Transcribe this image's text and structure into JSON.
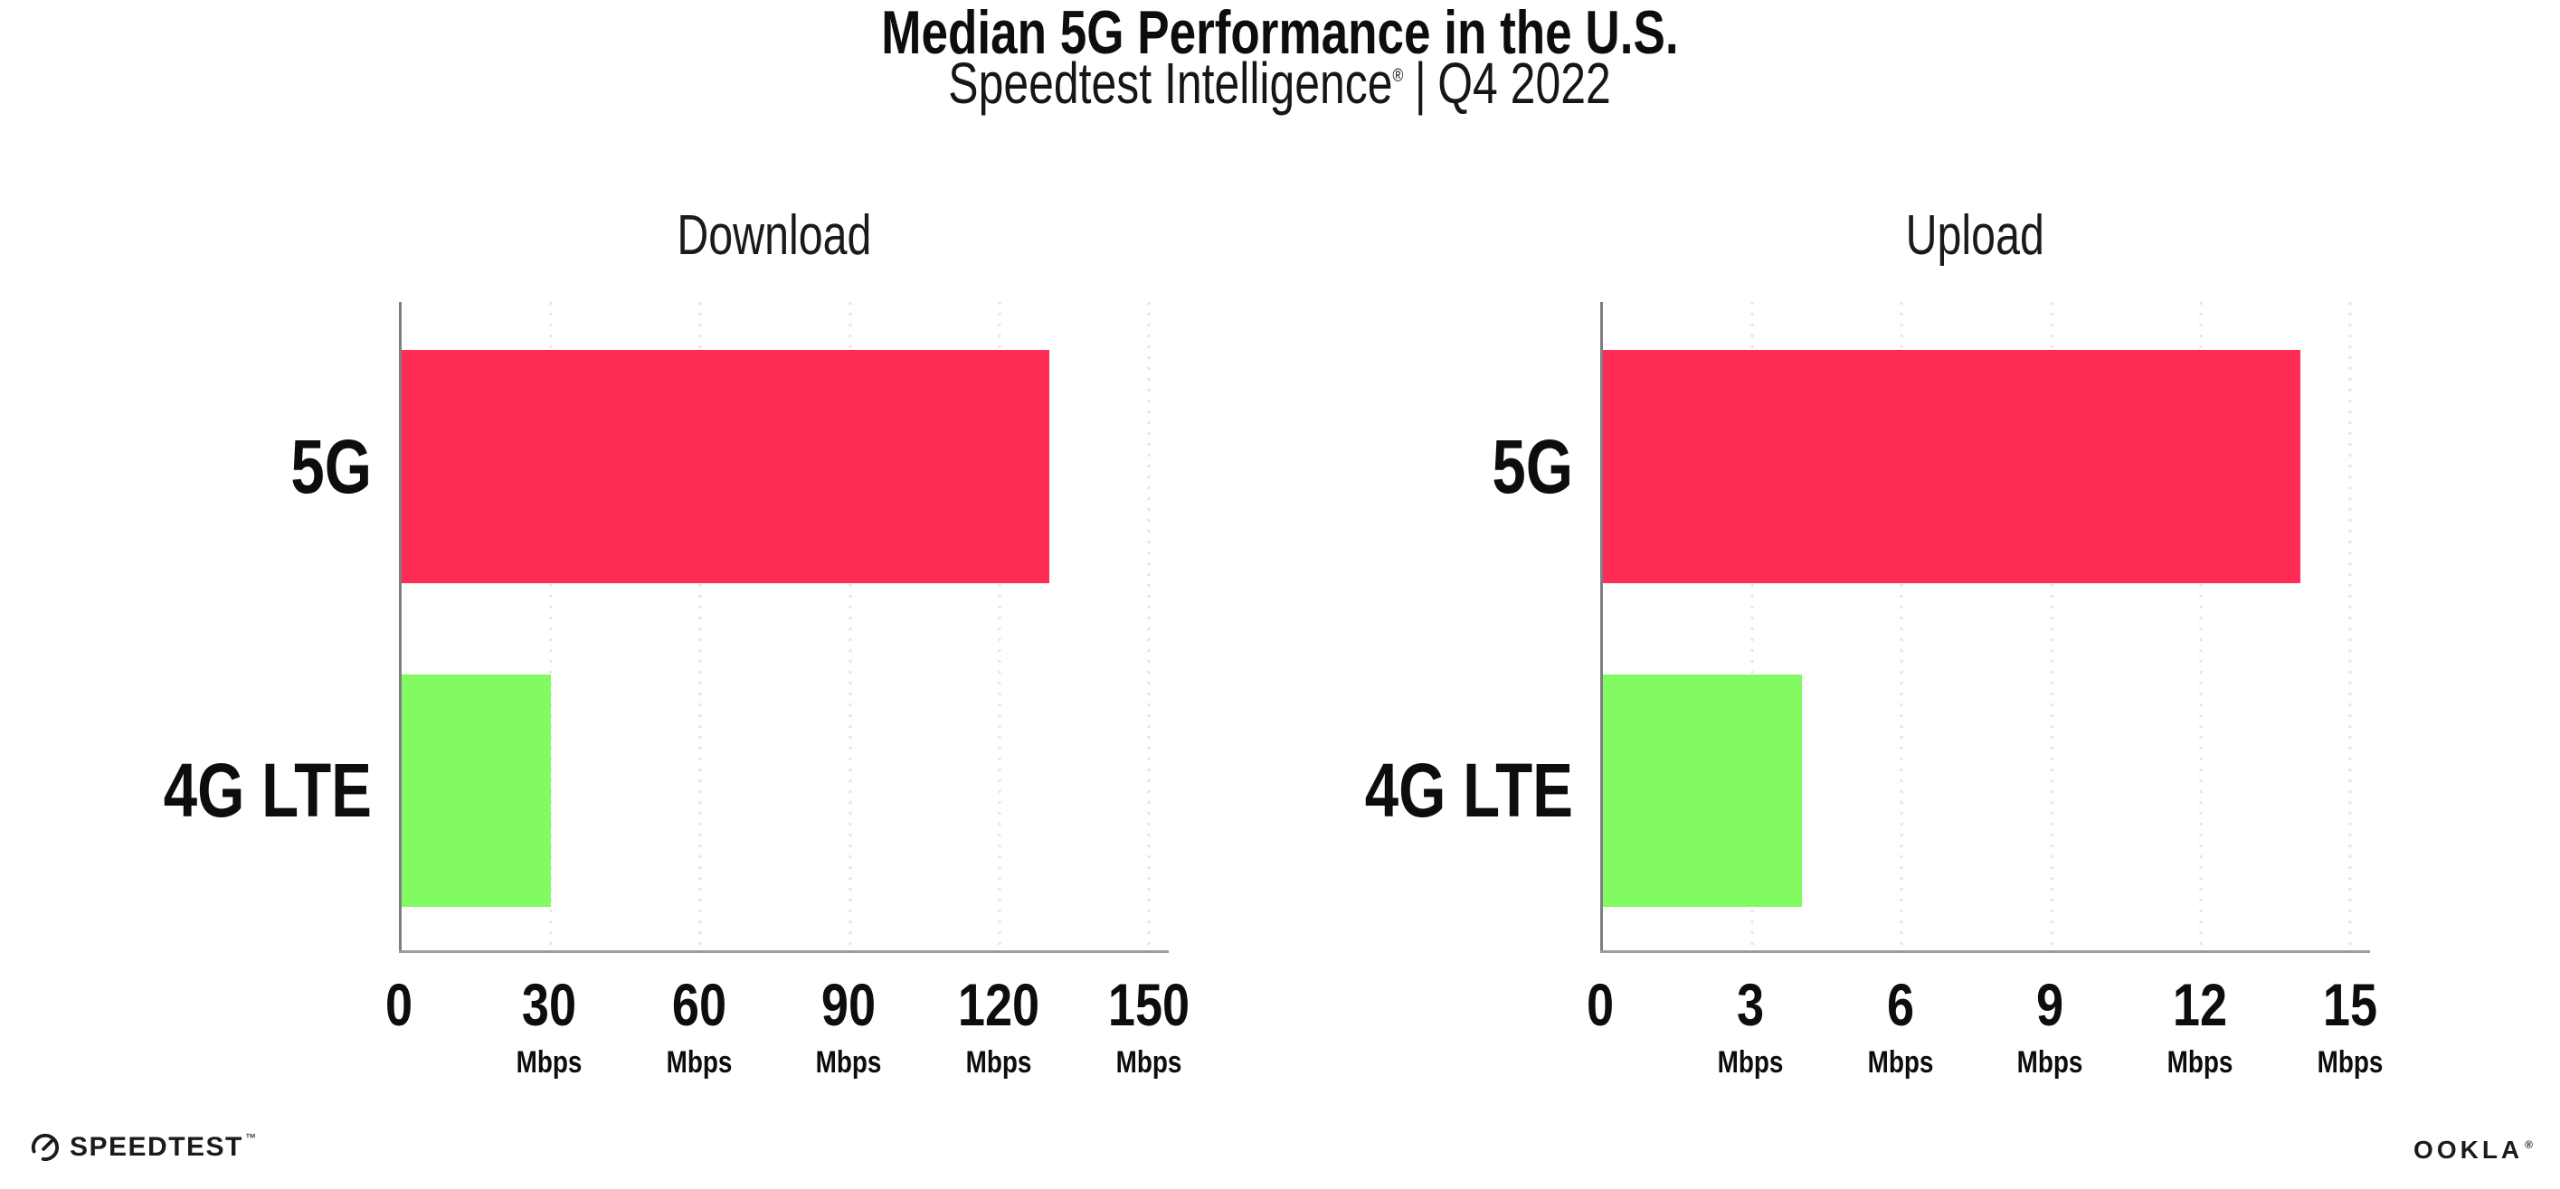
{
  "header": {
    "title": "Median 5G Performance in the U.S.",
    "subtitle": {
      "brand": "Speedtest Intelligence",
      "registered": "®",
      "separator": "|",
      "period": "Q4 2022"
    }
  },
  "chart_data": [
    {
      "type": "bar",
      "orientation": "horizontal",
      "title": "Download",
      "categories": [
        "5G",
        "4G LTE"
      ],
      "values": [
        130,
        30
      ],
      "unit": "Mbps",
      "xlabel": "",
      "ylabel": "",
      "xlim": [
        0,
        150
      ],
      "xticks": [
        0,
        30,
        60,
        90,
        120,
        150
      ],
      "grid": "vertical-dotted",
      "legend": "none",
      "bar_colors": [
        "#FF2D55",
        "#82FB63"
      ]
    },
    {
      "type": "bar",
      "orientation": "horizontal",
      "title": "Upload",
      "categories": [
        "5G",
        "4G LTE"
      ],
      "values": [
        14,
        4
      ],
      "unit": "Mbps",
      "xlabel": "",
      "ylabel": "",
      "xlim": [
        0,
        15
      ],
      "xticks": [
        0,
        3,
        6,
        9,
        12,
        15
      ],
      "grid": "vertical-dotted",
      "legend": "none",
      "bar_colors": [
        "#FF2D55",
        "#82FB63"
      ]
    }
  ],
  "footer": {
    "speedtest_label": "SPEEDTEST",
    "speedtest_mark": "™",
    "ookla_label": "OOKLA",
    "ookla_mark": "®"
  },
  "colors": {
    "bar_5g": "#FF2D55",
    "bar_4g_lte": "#82FB63",
    "gridline": "#E4E4EF",
    "y_axis": "#7D7D84",
    "x_axis": "#9B9BA1",
    "text": "#111111"
  }
}
